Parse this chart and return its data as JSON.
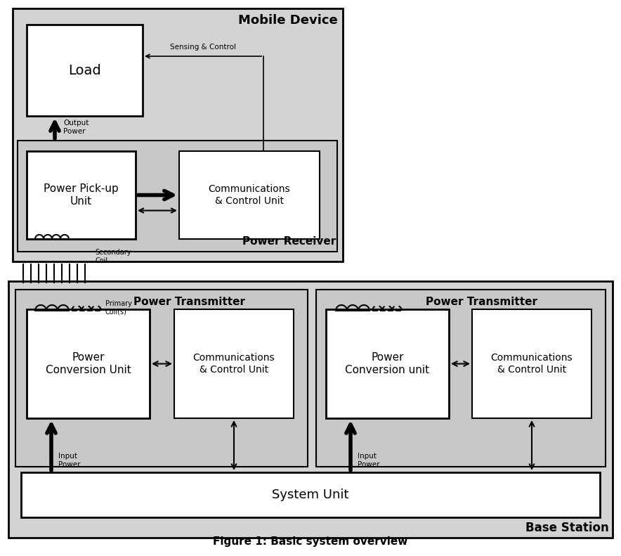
{
  "fig_width": 8.84,
  "fig_height": 7.91,
  "dpi": 100,
  "bg_color": "#ffffff",
  "gray_fill": "#d3d3d3",
  "light_gray": "#e0e0e0",
  "inner_gray": "#c8c8c8",
  "white_fill": "#ffffff",
  "figure_caption": "Figure 1: Basic system overview",
  "mobile_device_label": "Mobile Device",
  "power_receiver_label": "Power Receiver",
  "base_station_label": "Base Station",
  "power_transmitter_label": "Power Transmitter",
  "load_label": "Load",
  "power_pickup_label": "Power Pick-up\nUnit",
  "comm_control_recv": "Communications\n& Control Unit",
  "power_conversion_1": "Power\nConversion Unit",
  "power_conversion_2": "Power\nConversion unit",
  "comm_control_tx1": "Communications\n& Control Unit",
  "comm_control_tx2": "Communications\n& Control Unit",
  "system_unit_label": "System Unit",
  "secondary_coil_label": "Secondary\nCoil",
  "primary_coil_label": "Primary\nCoil(s)",
  "output_power_label": "Output\nPower",
  "input_power_label": "Input\nPower",
  "sensing_control_label": "Sensing & Control"
}
